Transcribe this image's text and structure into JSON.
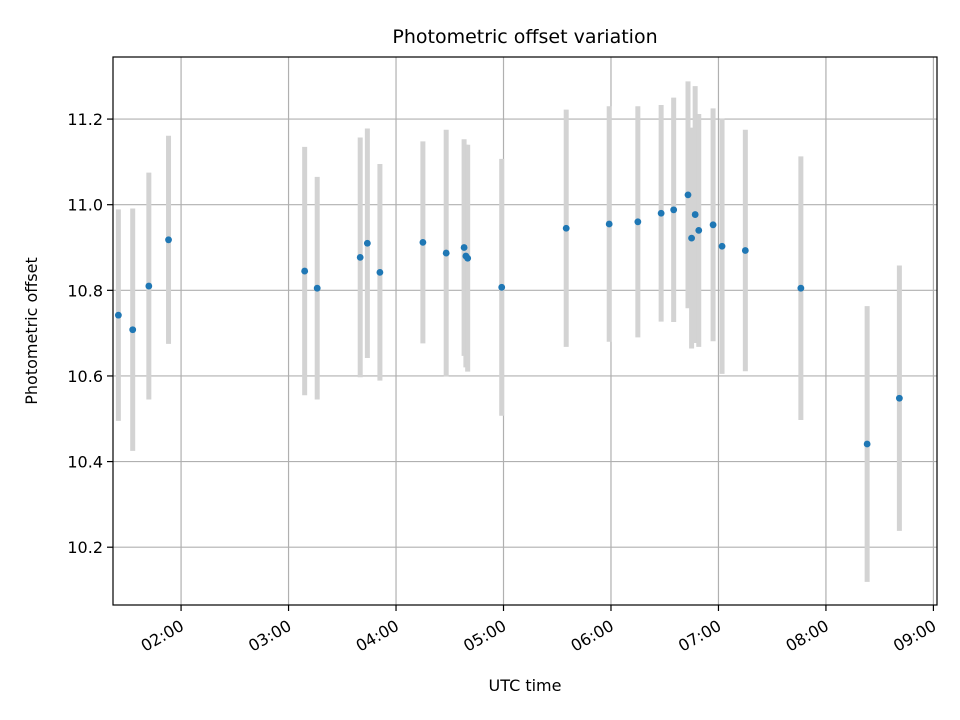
{
  "chart_data": {
    "type": "scatter",
    "title": "Photometric offset variation",
    "xlabel": "UTC time",
    "ylabel": "Photometric offset",
    "x_unit": "UTC time (HH:MM)",
    "xlim": [
      "01:22",
      "09:02"
    ],
    "ylim": [
      10.065,
      11.345
    ],
    "grid": true,
    "x_ticks": [
      "02:00",
      "03:00",
      "04:00",
      "05:00",
      "06:00",
      "07:00",
      "08:00",
      "09:00"
    ],
    "y_ticks": [
      10.2,
      10.4,
      10.6,
      10.8,
      11.0,
      11.2
    ],
    "y_tick_labels": [
      "10.2",
      "10.4",
      "10.6",
      "10.8",
      "11.0",
      "11.2"
    ],
    "point_color": "#1f77b4",
    "errorbar_color": "#d3d3d3",
    "points": [
      {
        "x": "01:25",
        "y": 10.742,
        "err": 0.247
      },
      {
        "x": "01:33",
        "y": 10.708,
        "err": 0.283
      },
      {
        "x": "01:42",
        "y": 10.81,
        "err": 0.265
      },
      {
        "x": "01:53",
        "y": 10.918,
        "err": 0.243
      },
      {
        "x": "03:09",
        "y": 10.845,
        "err": 0.29
      },
      {
        "x": "03:16",
        "y": 10.805,
        "err": 0.26
      },
      {
        "x": "03:40",
        "y": 10.877,
        "err": 0.28
      },
      {
        "x": "03:44",
        "y": 10.91,
        "err": 0.268
      },
      {
        "x": "03:51",
        "y": 10.842,
        "err": 0.253
      },
      {
        "x": "04:15",
        "y": 10.912,
        "err": 0.236
      },
      {
        "x": "04:28",
        "y": 10.887,
        "err": 0.288
      },
      {
        "x": "04:38",
        "y": 10.9,
        "err": 0.253
      },
      {
        "x": "04:39",
        "y": 10.88,
        "err": 0.26
      },
      {
        "x": "04:40",
        "y": 10.875,
        "err": 0.265
      },
      {
        "x": "04:59",
        "y": 10.807,
        "err": 0.3
      },
      {
        "x": "05:35",
        "y": 10.945,
        "err": 0.277
      },
      {
        "x": "05:59",
        "y": 10.955,
        "err": 0.275
      },
      {
        "x": "06:15",
        "y": 10.96,
        "err": 0.27
      },
      {
        "x": "06:28",
        "y": 10.98,
        "err": 0.253
      },
      {
        "x": "06:35",
        "y": 10.988,
        "err": 0.262
      },
      {
        "x": "06:43",
        "y": 11.023,
        "err": 0.265
      },
      {
        "x": "06:45",
        "y": 10.922,
        "err": 0.258
      },
      {
        "x": "06:47",
        "y": 10.977,
        "err": 0.3
      },
      {
        "x": "06:49",
        "y": 10.94,
        "err": 0.272
      },
      {
        "x": "06:57",
        "y": 10.953,
        "err": 0.272
      },
      {
        "x": "07:02",
        "y": 10.903,
        "err": 0.298
      },
      {
        "x": "07:15",
        "y": 10.893,
        "err": 0.282
      },
      {
        "x": "07:46",
        "y": 10.805,
        "err": 0.308
      },
      {
        "x": "08:23",
        "y": 10.441,
        "err": 0.322
      },
      {
        "x": "08:41",
        "y": 10.548,
        "err": 0.31
      }
    ]
  }
}
